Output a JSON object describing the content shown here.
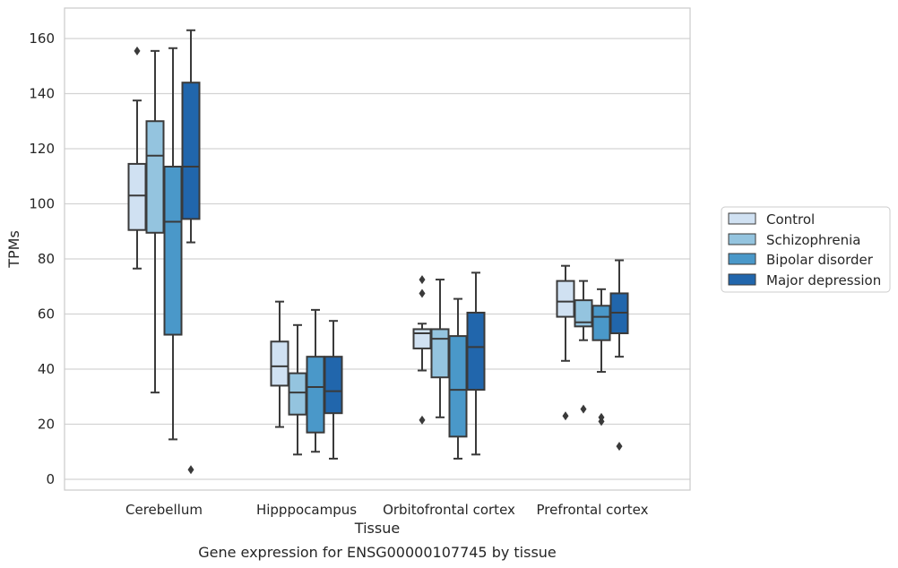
{
  "chart_data": {
    "type": "box",
    "ylabel": "TPMs",
    "xlabel": "Tissue",
    "caption": "Gene expression for ENSG00000107745 by tissue",
    "ylim": [
      -4,
      171
    ],
    "yticks": [
      0,
      20,
      40,
      60,
      80,
      100,
      120,
      140,
      160
    ],
    "grid": "horizontal",
    "legend_position": "right",
    "categories": [
      "Cerebellum",
      "Hipppocampus",
      "Orbitofrontal cortex",
      "Prefrontal cortex"
    ],
    "series": [
      {
        "name": "Control",
        "color": "#d0e1f2",
        "boxes": [
          {
            "whisker_low": 76.5,
            "q1": 90.5,
            "median": 103,
            "q3": 114.5,
            "whisker_high": 137.5,
            "outliers": [
              155.5
            ]
          },
          {
            "whisker_low": 19,
            "q1": 34,
            "median": 41,
            "q3": 50,
            "whisker_high": 64.5,
            "outliers": []
          },
          {
            "whisker_low": 39.5,
            "q1": 47.5,
            "median": 53,
            "q3": 54.5,
            "whisker_high": 56.5,
            "outliers": [
              72.5,
              67.5,
              21.5
            ]
          },
          {
            "whisker_low": 43,
            "q1": 59,
            "median": 64.5,
            "q3": 72,
            "whisker_high": 77.5,
            "outliers": [
              23
            ]
          }
        ]
      },
      {
        "name": "Schizophrenia",
        "color": "#94c4df",
        "boxes": [
          {
            "whisker_low": 31.5,
            "q1": 89.5,
            "median": 117.5,
            "q3": 130,
            "whisker_high": 155.5,
            "outliers": []
          },
          {
            "whisker_low": 9,
            "q1": 23.5,
            "median": 31.5,
            "q3": 38.5,
            "whisker_high": 56,
            "outliers": []
          },
          {
            "whisker_low": 22.5,
            "q1": 37,
            "median": 51,
            "q3": 54.5,
            "whisker_high": 72.5,
            "outliers": []
          },
          {
            "whisker_low": 50.5,
            "q1": 55.5,
            "median": 57,
            "q3": 65,
            "whisker_high": 72,
            "outliers": [
              25.5
            ]
          }
        ]
      },
      {
        "name": "Bipolar disorder",
        "color": "#4a98c9",
        "boxes": [
          {
            "whisker_low": 14.5,
            "q1": 52.5,
            "median": 93.5,
            "q3": 113.5,
            "whisker_high": 156.5,
            "outliers": []
          },
          {
            "whisker_low": 10,
            "q1": 17,
            "median": 33.5,
            "q3": 44.5,
            "whisker_high": 61.5,
            "outliers": []
          },
          {
            "whisker_low": 7.5,
            "q1": 15.5,
            "median": 32.5,
            "q3": 52,
            "whisker_high": 65.5,
            "outliers": []
          },
          {
            "whisker_low": 39,
            "q1": 50.5,
            "median": 59,
            "q3": 63,
            "whisker_high": 69,
            "outliers": [
              22.5,
              21
            ]
          }
        ]
      },
      {
        "name": "Major depression",
        "color": "#2166ac",
        "boxes": [
          {
            "whisker_low": 86,
            "q1": 94.5,
            "median": 113.5,
            "q3": 144,
            "whisker_high": 163,
            "outliers": [
              3.5
            ]
          },
          {
            "whisker_low": 7.5,
            "q1": 24,
            "median": 32,
            "q3": 44.5,
            "whisker_high": 57.5,
            "outliers": []
          },
          {
            "whisker_low": 9,
            "q1": 32.5,
            "median": 48,
            "q3": 60.5,
            "whisker_high": 75,
            "outliers": []
          },
          {
            "whisker_low": 44.5,
            "q1": 53,
            "median": 60.5,
            "q3": 67.5,
            "whisker_high": 79.5,
            "outliers": [
              12
            ]
          }
        ]
      }
    ]
  }
}
